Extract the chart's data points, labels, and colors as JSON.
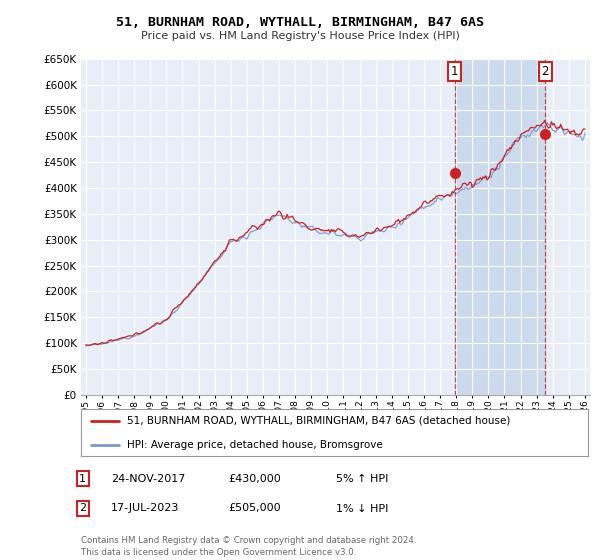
{
  "title": "51, BURNHAM ROAD, WYTHALL, BIRMINGHAM, B47 6AS",
  "subtitle": "Price paid vs. HM Land Registry's House Price Index (HPI)",
  "hpi_label": "HPI: Average price, detached house, Bromsgrove",
  "property_label": "51, BURNHAM ROAD, WYTHALL, BIRMINGHAM, B47 6AS (detached house)",
  "sale1_date": "24-NOV-2017",
  "sale1_price": "£430,000",
  "sale1_hpi": "5% ↑ HPI",
  "sale2_date": "17-JUL-2023",
  "sale2_price": "£505,000",
  "sale2_hpi": "1% ↓ HPI",
  "sale1_year": 2017.9,
  "sale2_year": 2023.54,
  "sale1_value": 430000,
  "sale2_value": 505000,
  "x_start": 1995,
  "x_end": 2026,
  "y_min": 0,
  "y_max": 650000,
  "y_ticks": [
    0,
    50000,
    100000,
    150000,
    200000,
    250000,
    300000,
    350000,
    400000,
    450000,
    500000,
    550000,
    600000,
    650000
  ],
  "background_color": "#ffffff",
  "plot_bg_color": "#e8eef8",
  "grid_color": "#ffffff",
  "hpi_color": "#7799cc",
  "property_color": "#cc2222",
  "shaded_region_color": "#ccdaee",
  "footnote": "Contains HM Land Registry data © Crown copyright and database right 2024.\nThis data is licensed under the Open Government Licence v3.0.",
  "x_ticks": [
    1995,
    1996,
    1997,
    1998,
    1999,
    2000,
    2001,
    2002,
    2003,
    2004,
    2005,
    2006,
    2007,
    2008,
    2009,
    2010,
    2011,
    2012,
    2013,
    2014,
    2015,
    2016,
    2017,
    2018,
    2019,
    2020,
    2021,
    2022,
    2023,
    2024,
    2025,
    2026
  ]
}
